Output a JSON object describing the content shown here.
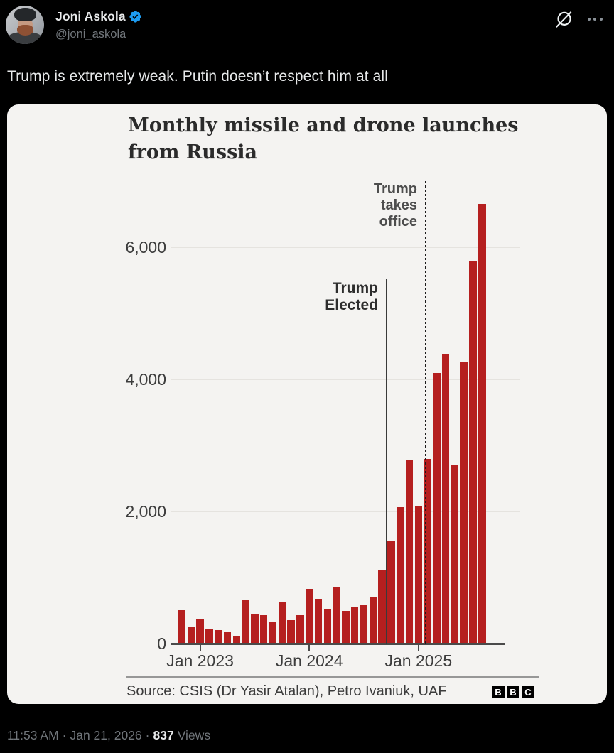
{
  "colors": {
    "background": "#000000",
    "text_primary": "#e7e9ea",
    "text_secondary": "#71767b",
    "badge_blue": "#1d9bf0",
    "card_background": "#f4f3f1",
    "bar_red": "#b51f1f"
  },
  "header": {
    "display_name": "Joni Askola",
    "handle": "@joni_askola",
    "verified": true,
    "icons": {
      "grok": "grok-slash-circle",
      "more": "ellipsis"
    }
  },
  "tweet": {
    "text": "Trump is extremely weak. Putin doesn’t respect him at all"
  },
  "chart": {
    "title_line1": "Monthly missile and drone launches",
    "title_line2": "from Russia",
    "annotations": {
      "elected": [
        "Trump",
        "Elected"
      ],
      "takes_office": [
        "Trump",
        "takes",
        "office"
      ]
    },
    "source": "Source: CSIS (Dr Yasir Atalan), Petro Ivaniuk, UAF",
    "logo_letters": [
      "B",
      "B",
      "C"
    ]
  },
  "chart_data": {
    "type": "bar",
    "title": "Monthly missile and drone launches from Russia",
    "x": [
      "Nov 2022",
      "Dec 2022",
      "Jan 2023",
      "Feb 2023",
      "Mar 2023",
      "Apr 2023",
      "May 2023",
      "Jun 2023",
      "Jul 2023",
      "Aug 2023",
      "Sep 2023",
      "Oct 2023",
      "Nov 2023",
      "Dec 2023",
      "Jan 2024",
      "Feb 2024",
      "Mar 2024",
      "Apr 2024",
      "May 2024",
      "Jun 2024",
      "Jul 2024",
      "Aug 2024",
      "Sep 2024",
      "Oct 2024",
      "Nov 2024",
      "Dec 2024",
      "Jan 2025",
      "Feb 2025",
      "Mar 2025",
      "Apr 2025",
      "May 2025",
      "Jun 2025",
      "Jul 2025",
      "Aug 2025"
    ],
    "values": [
      510,
      255,
      370,
      215,
      205,
      185,
      110,
      665,
      450,
      435,
      325,
      630,
      350,
      430,
      825,
      680,
      525,
      850,
      500,
      560,
      585,
      715,
      1105,
      1550,
      2060,
      2770,
      2070,
      2800,
      4100,
      4390,
      2710,
      4270,
      5790,
      6660
    ],
    "xlabel": "",
    "ylabel": "",
    "ylim": [
      0,
      7000
    ],
    "grid": "horizontal, faint",
    "legend": "none",
    "bar_color": "#b51f1f",
    "y_ticks": [
      {
        "value": 6000,
        "label": "6,000"
      },
      {
        "value": 4000,
        "label": "4,000"
      },
      {
        "value": 2000,
        "label": "2,000"
      },
      {
        "value": 0,
        "label": "0"
      }
    ],
    "x_ticks": [
      {
        "label": "Jan 2023",
        "index": 2
      },
      {
        "label": "Jan 2024",
        "index": 14
      },
      {
        "label": "Jan 2025",
        "index": 26
      }
    ],
    "annotations": [
      {
        "label": "Trump Elected",
        "event_month": "Nov 2024",
        "line_style": "solid",
        "month_index": 22.4
      },
      {
        "label": "Trump takes office",
        "event_month": "Jan 2025",
        "line_style": "dotted",
        "month_index": 26.7
      }
    ],
    "source": "CSIS (Dr Yasir Atalan), Petro Ivaniuk, UAF",
    "publisher": "BBC"
  },
  "footer": {
    "time": "11:53 AM",
    "separator": "·",
    "date": "Jan 21, 2026",
    "views_count": "837",
    "views_label": "Views"
  }
}
